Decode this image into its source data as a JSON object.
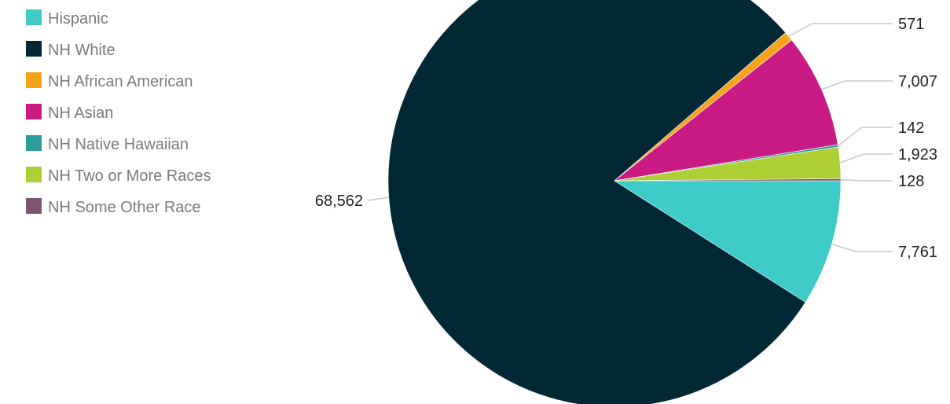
{
  "chart_data": {
    "type": "pie",
    "title": "",
    "legend_position": "top-left",
    "slices": [
      {
        "name": "Hispanic",
        "value": 7761,
        "label": "7,761",
        "color": "#3ecbc8"
      },
      {
        "name": "NH White",
        "value": 68562,
        "label": "68,562",
        "color": "#022836"
      },
      {
        "name": "NH African American",
        "value": 571,
        "label": "571",
        "color": "#f7a21b"
      },
      {
        "name": "NH Asian",
        "value": 7007,
        "label": "7,007",
        "color": "#ca1a84"
      },
      {
        "name": "NH Native Hawaiian",
        "value": 142,
        "label": "142",
        "color": "#2e9c9a"
      },
      {
        "name": "NH Two or More Races",
        "value": 1923,
        "label": "1,923",
        "color": "#afd035"
      },
      {
        "name": "NH Some Other Race",
        "value": 128,
        "label": "128",
        "color": "#7a5470"
      }
    ]
  }
}
